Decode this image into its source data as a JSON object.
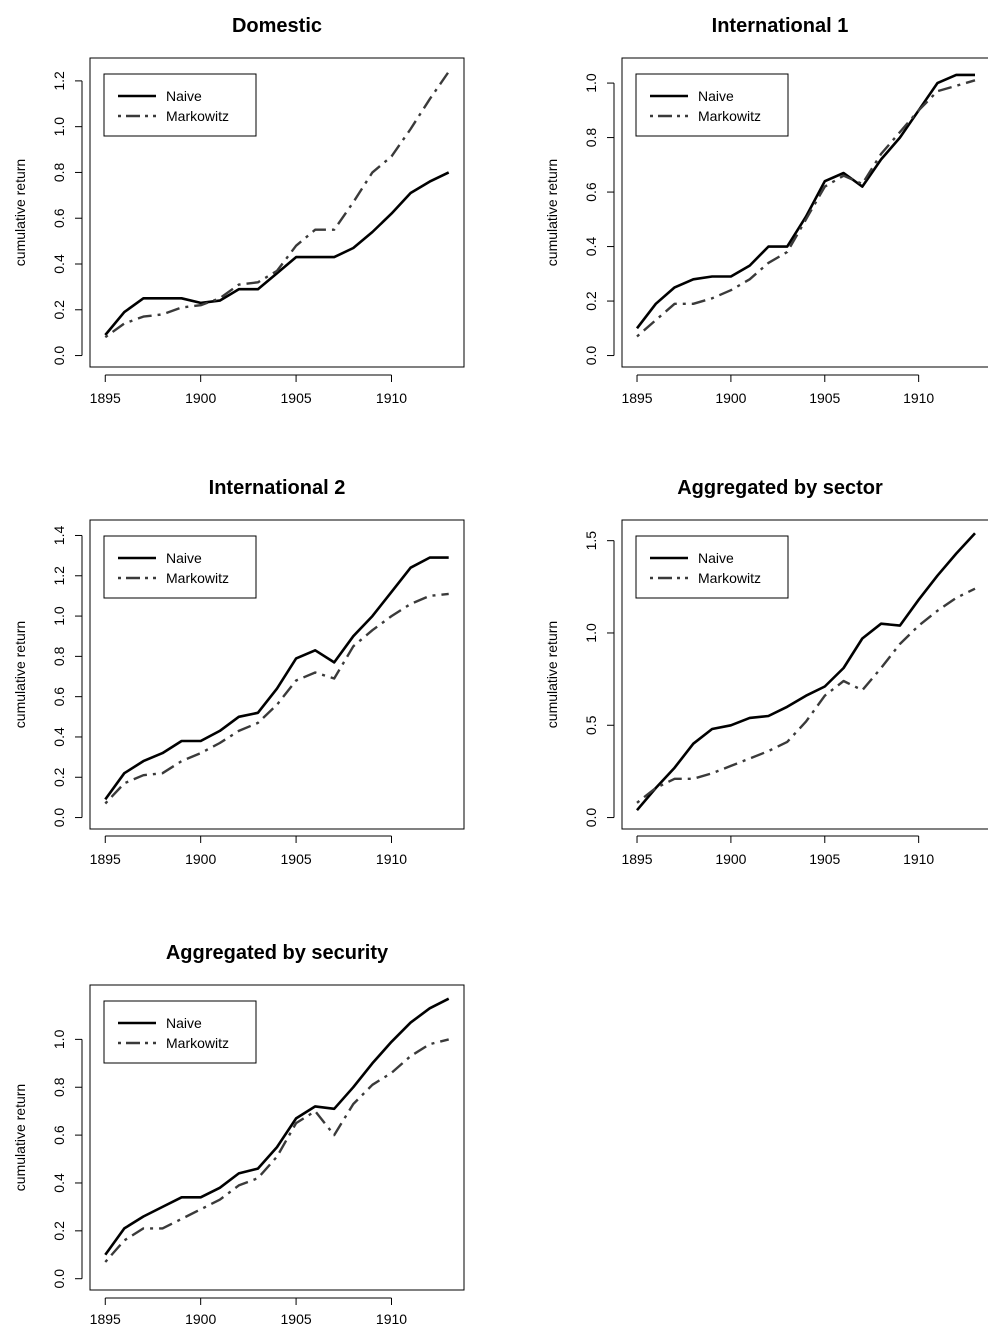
{
  "chart_data": [
    {
      "type": "line",
      "title": "Domestic",
      "xlabel": "",
      "ylabel": "cumulative return",
      "x": [
        1895,
        1896,
        1897,
        1898,
        1899,
        1900,
        1901,
        1902,
        1903,
        1904,
        1905,
        1906,
        1907,
        1908,
        1909,
        1910,
        1911,
        1912,
        1913
      ],
      "xticks": [
        "1895",
        "1900",
        "1905",
        "1910"
      ],
      "yticks": [
        "0.0",
        "0.2",
        "0.4",
        "0.6",
        "0.8",
        "1.0",
        "1.2"
      ],
      "ylim": [
        0,
        1.25
      ],
      "legend_position": "top-left",
      "series": [
        {
          "name": "Naive",
          "style": "solid",
          "values": [
            0.09,
            0.19,
            0.25,
            0.25,
            0.25,
            0.23,
            0.24,
            0.29,
            0.29,
            0.36,
            0.43,
            0.43,
            0.43,
            0.47,
            0.54,
            0.62,
            0.71,
            0.76,
            0.8
          ]
        },
        {
          "name": "Markowitz",
          "style": "dashdot",
          "values": [
            0.08,
            0.14,
            0.17,
            0.18,
            0.21,
            0.22,
            0.25,
            0.31,
            0.32,
            0.37,
            0.48,
            0.55,
            0.55,
            0.67,
            0.8,
            0.87,
            0.99,
            1.12,
            1.24
          ]
        }
      ]
    },
    {
      "type": "line",
      "title": "International 1",
      "xlabel": "",
      "ylabel": "cumulative return",
      "x": [
        1895,
        1896,
        1897,
        1898,
        1899,
        1900,
        1901,
        1902,
        1903,
        1904,
        1905,
        1906,
        1907,
        1908,
        1909,
        1910,
        1911,
        1912,
        1913
      ],
      "xticks": [
        "1895",
        "1900",
        "1905",
        "1910"
      ],
      "yticks": [
        "0.0",
        "0.2",
        "0.4",
        "0.6",
        "0.8",
        "1.0"
      ],
      "ylim": [
        0,
        1.05
      ],
      "legend_position": "top-left",
      "series": [
        {
          "name": "Naive",
          "style": "solid",
          "values": [
            0.1,
            0.19,
            0.25,
            0.28,
            0.29,
            0.29,
            0.33,
            0.4,
            0.4,
            0.51,
            0.64,
            0.67,
            0.62,
            0.72,
            0.8,
            0.9,
            1.0,
            1.03,
            1.03
          ]
        },
        {
          "name": "Markowitz",
          "style": "dashdot",
          "values": [
            0.07,
            0.13,
            0.19,
            0.19,
            0.21,
            0.24,
            0.28,
            0.34,
            0.38,
            0.5,
            0.62,
            0.66,
            0.63,
            0.74,
            0.82,
            0.9,
            0.97,
            0.99,
            1.01
          ]
        }
      ]
    },
    {
      "type": "line",
      "title": "International 2",
      "xlabel": "",
      "ylabel": "cumulative return",
      "x": [
        1895,
        1896,
        1897,
        1898,
        1899,
        1900,
        1901,
        1902,
        1903,
        1904,
        1905,
        1906,
        1907,
        1908,
        1909,
        1910,
        1911,
        1912,
        1913
      ],
      "xticks": [
        "1895",
        "1900",
        "1905",
        "1910"
      ],
      "yticks": [
        "0.0",
        "0.2",
        "0.4",
        "0.6",
        "0.8",
        "1.0",
        "1.2",
        "1.4"
      ],
      "ylim": [
        0,
        1.42
      ],
      "legend_position": "top-left",
      "series": [
        {
          "name": "Naive",
          "style": "solid",
          "values": [
            0.09,
            0.22,
            0.28,
            0.32,
            0.38,
            0.38,
            0.43,
            0.5,
            0.52,
            0.64,
            0.79,
            0.83,
            0.77,
            0.9,
            1.0,
            1.12,
            1.24,
            1.29,
            1.29
          ]
        },
        {
          "name": "Markowitz",
          "style": "dashdot",
          "values": [
            0.07,
            0.17,
            0.21,
            0.22,
            0.28,
            0.32,
            0.37,
            0.43,
            0.47,
            0.56,
            0.68,
            0.72,
            0.69,
            0.85,
            0.93,
            1.0,
            1.06,
            1.1,
            1.11
          ]
        }
      ]
    },
    {
      "type": "line",
      "title": "Aggregated by sector",
      "xlabel": "",
      "ylabel": "cumulative return",
      "x": [
        1895,
        1896,
        1897,
        1898,
        1899,
        1900,
        1901,
        1902,
        1903,
        1904,
        1905,
        1906,
        1907,
        1908,
        1909,
        1910,
        1911,
        1912,
        1913
      ],
      "xticks": [
        "1895",
        "1900",
        "1905",
        "1910"
      ],
      "yticks": [
        "0.0",
        "0.5",
        "1.0",
        "1.5"
      ],
      "ylim": [
        0,
        1.55
      ],
      "legend_position": "top-left",
      "series": [
        {
          "name": "Naive",
          "style": "solid",
          "values": [
            0.04,
            0.16,
            0.27,
            0.4,
            0.48,
            0.5,
            0.54,
            0.55,
            0.6,
            0.66,
            0.71,
            0.81,
            0.97,
            1.05,
            1.04,
            1.18,
            1.31,
            1.43,
            1.54
          ]
        },
        {
          "name": "Markowitz",
          "style": "dashdot",
          "values": [
            0.08,
            0.16,
            0.21,
            0.21,
            0.24,
            0.28,
            0.32,
            0.36,
            0.41,
            0.52,
            0.66,
            0.74,
            0.69,
            0.81,
            0.94,
            1.04,
            1.12,
            1.19,
            1.24
          ]
        }
      ]
    },
    {
      "type": "line",
      "title": "Aggregated by security",
      "xlabel": "",
      "ylabel": "cumulative return",
      "x": [
        1895,
        1896,
        1897,
        1898,
        1899,
        1900,
        1901,
        1902,
        1903,
        1904,
        1905,
        1906,
        1907,
        1908,
        1909,
        1910,
        1911,
        1912,
        1913
      ],
      "xticks": [
        "1895",
        "1900",
        "1905",
        "1910"
      ],
      "yticks": [
        "0.0",
        "0.2",
        "0.4",
        "0.6",
        "0.8",
        "1.0"
      ],
      "ylim": [
        0,
        1.18
      ],
      "legend_position": "top-left",
      "series": [
        {
          "name": "Naive",
          "style": "solid",
          "values": [
            0.1,
            0.21,
            0.26,
            0.3,
            0.34,
            0.34,
            0.38,
            0.44,
            0.46,
            0.55,
            0.67,
            0.72,
            0.71,
            0.8,
            0.9,
            0.99,
            1.07,
            1.13,
            1.17
          ]
        },
        {
          "name": "Markowitz",
          "style": "dashdot",
          "values": [
            0.07,
            0.16,
            0.21,
            0.21,
            0.25,
            0.29,
            0.33,
            0.39,
            0.42,
            0.51,
            0.65,
            0.7,
            0.6,
            0.73,
            0.81,
            0.86,
            0.93,
            0.98,
            1.0
          ]
        }
      ]
    }
  ]
}
